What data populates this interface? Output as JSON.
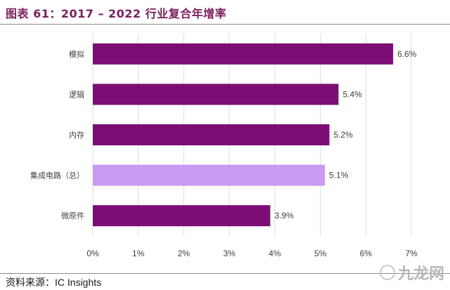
{
  "header": {
    "title": "图表 61：2017 – 2022 行业复合年增率"
  },
  "footer": {
    "source_prefix": "资料来源：",
    "source_name": "IC Insights"
  },
  "watermark": {
    "text": "九龙网",
    "icon": "logo-icon"
  },
  "colors": {
    "bar": "#7b0d74",
    "highlight": "#c89af2",
    "grid": "#dddddd",
    "title": "#7a1e5c"
  },
  "chart_data": {
    "type": "bar",
    "orientation": "horizontal",
    "title": "图表 61：2017 – 2022 行业复合年增率",
    "categories": [
      "模拟",
      "逻辑",
      "内存",
      "集成电路（总）",
      "微原件"
    ],
    "values": [
      6.6,
      5.4,
      5.2,
      5.1,
      3.9
    ],
    "value_labels": [
      "6.6%",
      "5.4%",
      "5.2%",
      "5.1%",
      "3.9%"
    ],
    "highlight_index": 3,
    "xlim": [
      0,
      7
    ],
    "xticks": [
      0,
      1,
      2,
      3,
      4,
      5,
      6,
      7
    ],
    "xtick_labels": [
      "0%",
      "1%",
      "2%",
      "3%",
      "4%",
      "5%",
      "6%",
      "7%"
    ],
    "grid": true,
    "legend": "none"
  }
}
